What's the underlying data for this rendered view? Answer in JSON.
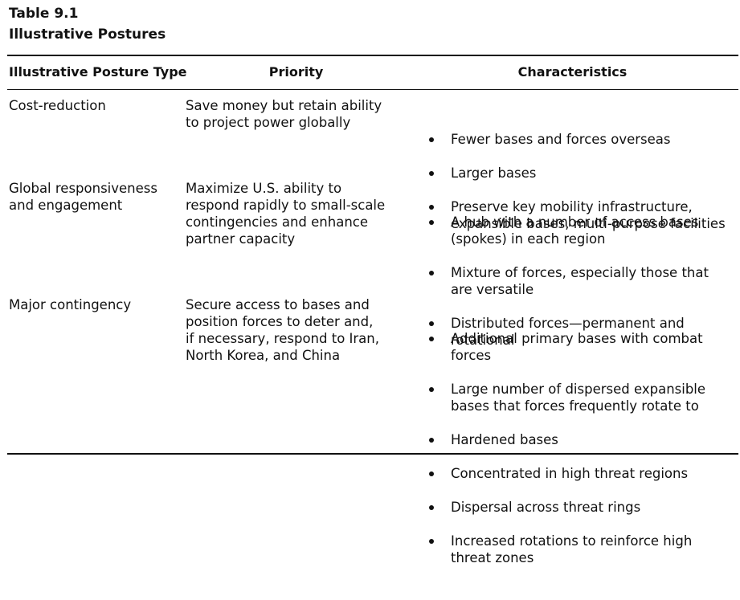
{
  "table": {
    "number": "Table 9.1",
    "title": "Illustrative Postures",
    "headers": {
      "type": "Illustrative Posture Type",
      "priority": "Priority",
      "characteristics": "Characteristics"
    },
    "rows": [
      {
        "type": "Cost-reduction",
        "priority": "Save money but retain ability\nto project power globally",
        "characteristics": [
          "Fewer bases and forces overseas",
          "Larger bases",
          "Preserve key mobility infrastructure,\nexpansible bases, multi-purpose facilities"
        ]
      },
      {
        "type": "Global responsiveness\nand engagement",
        "priority": "Maximize U.S. ability to\nrespond rapidly to small-scale\ncontingencies and enhance\npartner capacity",
        "characteristics": [
          "A hub with a number of access bases\n(spokes) in each region",
          "Mixture of forces, especially those that\nare versatile",
          "Distributed forces—permanent and\nrotational"
        ]
      },
      {
        "type": "Major contingency",
        "priority": "Secure access to bases and\nposition forces to deter and,\nif necessary, respond to Iran,\nNorth Korea, and China",
        "characteristics": [
          "Additional primary bases with combat\nforces",
          "Large number of dispersed expansible\nbases that forces frequently rotate to",
          "Hardened bases",
          "Concentrated in high threat regions",
          "Dispersal across threat rings",
          "Increased rotations to reinforce high\nthreat zones"
        ]
      }
    ]
  }
}
